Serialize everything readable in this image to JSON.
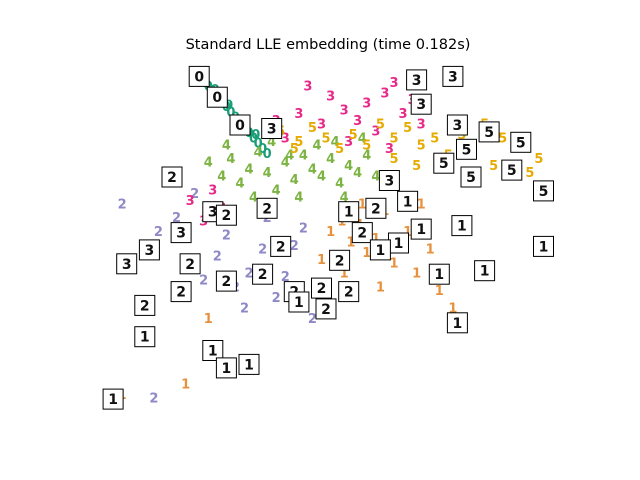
{
  "chart_data": {
    "type": "scatter",
    "title": "Standard LLE embedding (time 0.182s)",
    "axes_visible": false,
    "grid": false,
    "legend": "none",
    "xlim": [
      0,
      1
    ],
    "ylim": [
      0,
      1
    ],
    "colors": {
      "0": "#1b9e77",
      "1": "#e6913e",
      "2": "#8e89c6",
      "3": "#e7298a",
      "4": "#7cb342",
      "5": "#e6ab02"
    },
    "series": [
      {
        "label": "0",
        "points": [
          [
            0.23,
            0.98
          ],
          [
            0.24,
            0.955
          ],
          [
            0.25,
            0.94
          ],
          [
            0.26,
            0.925
          ],
          [
            0.27,
            0.91
          ],
          [
            0.28,
            0.895
          ],
          [
            0.29,
            0.88
          ],
          [
            0.3,
            0.865
          ],
          [
            0.31,
            0.85
          ],
          [
            0.32,
            0.835
          ],
          [
            0.33,
            0.82
          ],
          [
            0.34,
            0.805
          ],
          [
            0.35,
            0.79
          ],
          [
            0.36,
            0.775
          ],
          [
            0.37,
            0.76
          ],
          [
            0.38,
            0.745
          ],
          [
            0.265,
            0.93
          ],
          [
            0.295,
            0.885
          ],
          [
            0.325,
            0.84
          ],
          [
            0.355,
            0.8
          ]
        ]
      },
      {
        "label": "1",
        "points": [
          [
            0.52,
            0.52
          ],
          [
            0.545,
            0.55
          ],
          [
            0.565,
            0.49
          ],
          [
            0.585,
            0.54
          ],
          [
            0.6,
            0.46
          ],
          [
            0.62,
            0.5
          ],
          [
            0.64,
            0.58
          ],
          [
            0.66,
            0.43
          ],
          [
            0.69,
            0.52
          ],
          [
            0.71,
            0.4
          ],
          [
            0.74,
            0.47
          ],
          [
            0.76,
            0.35
          ],
          [
            0.79,
            0.3
          ],
          [
            0.72,
            0.6
          ],
          [
            0.68,
            0.62
          ],
          [
            0.59,
            0.6
          ],
          [
            0.5,
            0.44
          ],
          [
            0.55,
            0.4
          ],
          [
            0.63,
            0.36
          ],
          [
            0.25,
            0.27
          ],
          [
            0.2,
            0.08
          ],
          [
            0.06,
            0.05
          ]
        ]
      },
      {
        "label": "2",
        "points": [
          [
            0.06,
            0.6
          ],
          [
            0.11,
            0.47
          ],
          [
            0.14,
            0.52
          ],
          [
            0.18,
            0.56
          ],
          [
            0.21,
            0.43
          ],
          [
            0.24,
            0.38
          ],
          [
            0.27,
            0.45
          ],
          [
            0.29,
            0.51
          ],
          [
            0.31,
            0.36
          ],
          [
            0.34,
            0.4
          ],
          [
            0.37,
            0.47
          ],
          [
            0.4,
            0.33
          ],
          [
            0.42,
            0.39
          ],
          [
            0.44,
            0.48
          ],
          [
            0.46,
            0.3
          ],
          [
            0.48,
            0.27
          ],
          [
            0.5,
            0.35
          ],
          [
            0.33,
            0.3
          ],
          [
            0.3,
            0.55
          ],
          [
            0.25,
            0.58
          ],
          [
            0.22,
            0.63
          ],
          [
            0.38,
            0.56
          ],
          [
            0.46,
            0.53
          ],
          [
            0.13,
            0.04
          ]
        ]
      },
      {
        "label": "3",
        "points": [
          [
            0.47,
            0.94
          ],
          [
            0.52,
            0.91
          ],
          [
            0.55,
            0.87
          ],
          [
            0.58,
            0.84
          ],
          [
            0.6,
            0.89
          ],
          [
            0.62,
            0.81
          ],
          [
            0.64,
            0.92
          ],
          [
            0.66,
            0.95
          ],
          [
            0.68,
            0.86
          ],
          [
            0.7,
            0.9
          ],
          [
            0.5,
            0.83
          ],
          [
            0.45,
            0.86
          ],
          [
            0.4,
            0.84
          ],
          [
            0.42,
            0.79
          ],
          [
            0.56,
            0.78
          ],
          [
            0.65,
            0.76
          ],
          [
            0.72,
            0.83
          ],
          [
            0.24,
            0.55
          ],
          [
            0.21,
            0.61
          ],
          [
            0.26,
            0.64
          ],
          [
            0.28,
            0.59
          ]
        ]
      },
      {
        "label": "4",
        "points": [
          [
            0.25,
            0.72
          ],
          [
            0.28,
            0.68
          ],
          [
            0.3,
            0.73
          ],
          [
            0.32,
            0.66
          ],
          [
            0.34,
            0.7
          ],
          [
            0.36,
            0.75
          ],
          [
            0.38,
            0.69
          ],
          [
            0.4,
            0.64
          ],
          [
            0.42,
            0.72
          ],
          [
            0.44,
            0.67
          ],
          [
            0.46,
            0.74
          ],
          [
            0.48,
            0.7
          ],
          [
            0.5,
            0.68
          ],
          [
            0.52,
            0.73
          ],
          [
            0.54,
            0.66
          ],
          [
            0.56,
            0.71
          ],
          [
            0.58,
            0.69
          ],
          [
            0.6,
            0.74
          ],
          [
            0.62,
            0.68
          ],
          [
            0.35,
            0.62
          ],
          [
            0.45,
            0.62
          ],
          [
            0.55,
            0.62
          ],
          [
            0.29,
            0.77
          ],
          [
            0.39,
            0.78
          ],
          [
            0.49,
            0.77
          ],
          [
            0.59,
            0.79
          ],
          [
            0.33,
            0.81
          ],
          [
            0.43,
            0.74
          ],
          [
            0.53,
            0.78
          ]
        ]
      },
      {
        "label": "5",
        "points": [
          [
            0.41,
            0.81
          ],
          [
            0.45,
            0.78
          ],
          [
            0.48,
            0.82
          ],
          [
            0.51,
            0.79
          ],
          [
            0.54,
            0.76
          ],
          [
            0.57,
            0.8
          ],
          [
            0.6,
            0.77
          ],
          [
            0.63,
            0.83
          ],
          [
            0.66,
            0.79
          ],
          [
            0.69,
            0.82
          ],
          [
            0.72,
            0.77
          ],
          [
            0.75,
            0.79
          ],
          [
            0.78,
            0.74
          ],
          [
            0.81,
            0.8
          ],
          [
            0.86,
            0.83
          ],
          [
            0.9,
            0.79
          ],
          [
            0.95,
            0.78
          ],
          [
            0.98,
            0.73
          ],
          [
            0.96,
            0.69
          ],
          [
            0.88,
            0.71
          ],
          [
            0.71,
            0.71
          ],
          [
            0.66,
            0.73
          ],
          [
            0.44,
            0.76
          ]
        ]
      }
    ],
    "thumbnails": [
      [
        "3",
        0.71,
        0.96
      ],
      [
        "3",
        0.79,
        0.97
      ],
      [
        "3",
        0.72,
        0.89
      ],
      [
        "3",
        0.8,
        0.83
      ],
      [
        "3",
        0.39,
        0.82
      ],
      [
        "3",
        0.65,
        0.67
      ],
      [
        "3",
        0.26,
        0.58
      ],
      [
        "3",
        0.19,
        0.52
      ],
      [
        "3",
        0.12,
        0.47
      ],
      [
        "3",
        0.07,
        0.43
      ],
      [
        "5",
        0.87,
        0.81
      ],
      [
        "5",
        0.82,
        0.76
      ],
      [
        "5",
        0.77,
        0.72
      ],
      [
        "5",
        0.83,
        0.68
      ],
      [
        "5",
        0.94,
        0.78
      ],
      [
        "5",
        0.92,
        0.7
      ],
      [
        "5",
        0.99,
        0.64
      ],
      [
        "0",
        0.23,
        0.97
      ],
      [
        "0",
        0.27,
        0.91
      ],
      [
        "0",
        0.32,
        0.83
      ],
      [
        "2",
        0.17,
        0.68
      ],
      [
        "2",
        0.29,
        0.57
      ],
      [
        "2",
        0.38,
        0.59
      ],
      [
        "2",
        0.41,
        0.48
      ],
      [
        "2",
        0.21,
        0.43
      ],
      [
        "2",
        0.37,
        0.4
      ],
      [
        "2",
        0.29,
        0.38
      ],
      [
        "2",
        0.11,
        0.31
      ],
      [
        "2",
        0.19,
        0.35
      ],
      [
        "2",
        0.44,
        0.35
      ],
      [
        "2",
        0.5,
        0.36
      ],
      [
        "2",
        0.54,
        0.44
      ],
      [
        "2",
        0.59,
        0.52
      ],
      [
        "2",
        0.62,
        0.59
      ],
      [
        "2",
        0.51,
        0.3
      ],
      [
        "2",
        0.56,
        0.35
      ],
      [
        "1",
        0.69,
        0.61
      ],
      [
        "1",
        0.72,
        0.53
      ],
      [
        "1",
        0.67,
        0.49
      ],
      [
        "1",
        0.76,
        0.4
      ],
      [
        "1",
        0.81,
        0.54
      ],
      [
        "1",
        0.86,
        0.41
      ],
      [
        "1",
        0.8,
        0.26
      ],
      [
        "1",
        0.99,
        0.48
      ],
      [
        "1",
        0.26,
        0.18
      ],
      [
        "1",
        0.29,
        0.13
      ],
      [
        "1",
        0.11,
        0.22
      ],
      [
        "1",
        0.34,
        0.14
      ],
      [
        "1",
        0.04,
        0.04
      ],
      [
        "1",
        0.45,
        0.32
      ],
      [
        "1",
        0.56,
        0.58
      ],
      [
        "1",
        0.63,
        0.47
      ]
    ]
  }
}
